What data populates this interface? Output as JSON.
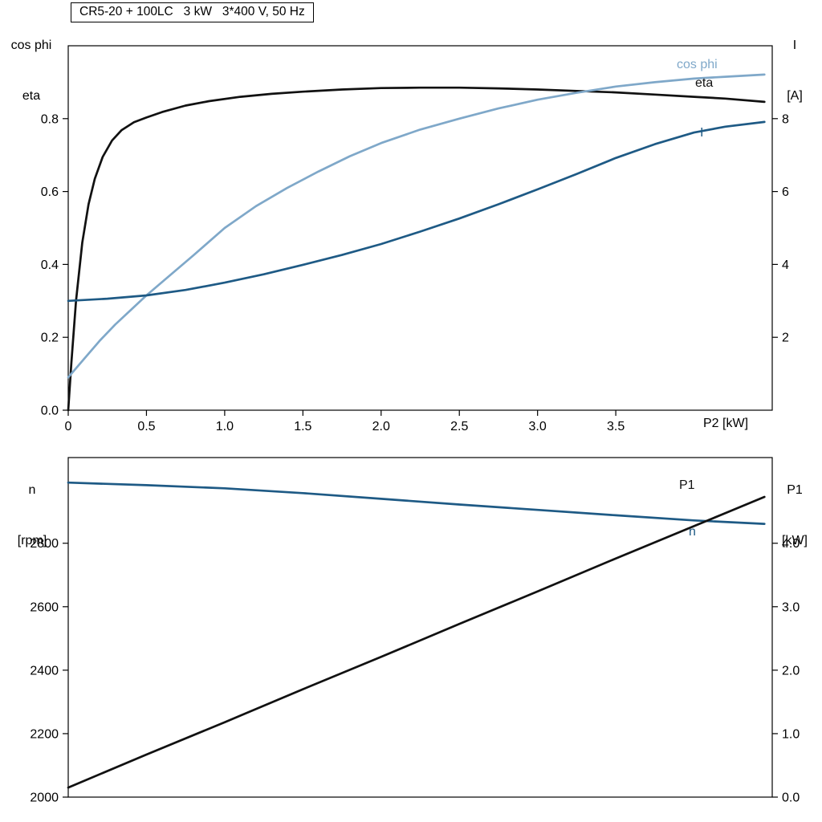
{
  "title": "CR5-20 + 100LC   3 kW   3*400 V, 50 Hz",
  "colors": {
    "black": "#111111",
    "dark_blue": "#1e5a85",
    "light_blue": "#7fa8c9"
  },
  "axis_corner_labels": {
    "top_left_1": "cos phi",
    "top_left_2": "eta",
    "top_right_1": "I",
    "top_right_2": "[A]",
    "bottom_left_1": "n",
    "bottom_left_2": "[rpm]",
    "bottom_right_1": "P1",
    "bottom_right_2": "[kW]"
  },
  "x_axis_label": "P2 [kW]",
  "curve_labels": {
    "cos_phi": "cos phi",
    "eta": "eta",
    "current": "I",
    "p1": "P1",
    "speed": "n"
  },
  "chart_data": [
    {
      "type": "line",
      "title": "CR5-20 + 100LC   3 kW   3*400 V, 50 Hz",
      "xlabel": "P2 [kW]",
      "xlim": [
        0,
        4.5
      ],
      "xticks": {
        "values": [
          0,
          0.5,
          1,
          1.5,
          2,
          2.5,
          3,
          3.5
        ],
        "labels": [
          "0",
          "0.5",
          "1.0",
          "1.5",
          "2.0",
          "2.5",
          "3.0",
          "3.5"
        ]
      },
      "left_axis": {
        "label": "cos phi, eta",
        "lim": [
          0,
          1.0
        ],
        "ticks": {
          "values": [
            0,
            0.2,
            0.4,
            0.6,
            0.8
          ],
          "labels": [
            "0.0",
            "0.2",
            "0.4",
            "0.6",
            "0.8"
          ]
        }
      },
      "right_axis": {
        "label": "I [A]",
        "lim": [
          0,
          10
        ],
        "ticks": {
          "values": [
            2,
            4,
            6,
            8
          ],
          "labels": [
            "2",
            "4",
            "6",
            "8"
          ]
        }
      },
      "grid": false,
      "series": [
        {
          "name": "eta",
          "axis": "left",
          "color_key": "black",
          "x": [
            0,
            0.02,
            0.05,
            0.09,
            0.13,
            0.17,
            0.22,
            0.28,
            0.34,
            0.42,
            0.5,
            0.6,
            0.75,
            0.9,
            1.1,
            1.3,
            1.5,
            1.75,
            2,
            2.25,
            2.5,
            2.75,
            3,
            3.25,
            3.5,
            3.75,
            4,
            4.2,
            4.45
          ],
          "values": [
            0,
            0.13,
            0.3,
            0.46,
            0.565,
            0.635,
            0.695,
            0.74,
            0.768,
            0.79,
            0.803,
            0.818,
            0.836,
            0.848,
            0.86,
            0.868,
            0.874,
            0.88,
            0.884,
            0.885,
            0.885,
            0.883,
            0.88,
            0.876,
            0.872,
            0.866,
            0.86,
            0.855,
            0.846
          ]
        },
        {
          "name": "cos phi",
          "axis": "left",
          "color_key": "light_blue",
          "x": [
            0,
            0.1,
            0.2,
            0.3,
            0.4,
            0.5,
            0.65,
            0.8,
            1,
            1.2,
            1.4,
            1.6,
            1.8,
            2,
            2.25,
            2.5,
            2.75,
            3,
            3.25,
            3.5,
            3.75,
            4,
            4.2,
            4.45
          ],
          "values": [
            0.09,
            0.14,
            0.19,
            0.235,
            0.275,
            0.315,
            0.37,
            0.425,
            0.5,
            0.56,
            0.61,
            0.655,
            0.697,
            0.733,
            0.77,
            0.8,
            0.828,
            0.852,
            0.871,
            0.888,
            0.9,
            0.91,
            0.915,
            0.921
          ]
        },
        {
          "name": "I",
          "axis": "right",
          "color_key": "dark_blue",
          "x": [
            0,
            0.25,
            0.5,
            0.75,
            1,
            1.25,
            1.5,
            1.75,
            2,
            2.25,
            2.5,
            2.75,
            3,
            3.25,
            3.5,
            3.75,
            4,
            4.2,
            4.45
          ],
          "values": [
            3.0,
            3.06,
            3.15,
            3.3,
            3.5,
            3.73,
            3.99,
            4.26,
            4.56,
            4.9,
            5.26,
            5.65,
            6.06,
            6.48,
            6.92,
            7.3,
            7.62,
            7.78,
            7.91
          ]
        }
      ]
    },
    {
      "type": "line",
      "title": "",
      "xlabel": "",
      "xlim": [
        0,
        4.5
      ],
      "xticks": {
        "values": [],
        "labels": []
      },
      "left_axis": {
        "label": "n [rpm]",
        "lim": [
          2000,
          3070
        ],
        "ticks": {
          "values": [
            2000,
            2200,
            2400,
            2600,
            2800
          ],
          "labels": [
            "2000",
            "2200",
            "2400",
            "2600",
            "2800"
          ]
        }
      },
      "right_axis": {
        "label": "P1 [kW]",
        "lim": [
          0,
          5.35
        ],
        "ticks": {
          "values": [
            0,
            1,
            2,
            3,
            4
          ],
          "labels": [
            "0.0",
            "1.0",
            "2.0",
            "3.0",
            "4.0"
          ]
        }
      },
      "grid": false,
      "series": [
        {
          "name": "n",
          "axis": "left",
          "color_key": "dark_blue",
          "x": [
            0,
            0.5,
            1,
            1.5,
            2,
            2.5,
            3,
            3.5,
            4,
            4.45
          ],
          "values": [
            2991,
            2983,
            2973,
            2958,
            2940,
            2922,
            2905,
            2888,
            2872,
            2861
          ]
        },
        {
          "name": "P1",
          "axis": "right",
          "color_key": "black",
          "x": [
            0,
            0.5,
            1,
            1.5,
            2,
            2.5,
            3,
            3.5,
            4,
            4.45
          ],
          "values": [
            0.15,
            0.67,
            1.18,
            1.7,
            2.21,
            2.73,
            3.24,
            3.76,
            4.27,
            4.73
          ]
        }
      ]
    }
  ]
}
